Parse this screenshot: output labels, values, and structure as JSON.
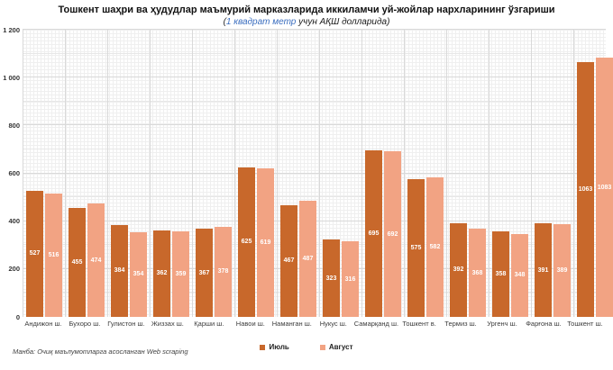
{
  "header": {
    "title": "Тошкент шаҳри ва ҳудудлар маъмурий марказларида иккиламчи уй-жойлар нархларининг ўзгариши",
    "subtitle_open": "(",
    "subtitle_highlight": "1 квадрат метр",
    "subtitle_rest": " учун АҚШ долларида",
    "subtitle_close": ")"
  },
  "chart_data": {
    "type": "bar",
    "title": "Тошкент шаҳри ва ҳудудлар маъмурий марказларида иккиламчи уй-жойлар нархларининг ўзгариши",
    "subtitle": "(1 квадрат метр учун АҚШ долларида)",
    "xlabel": "",
    "ylabel": "",
    "ylim": [
      0,
      1200
    ],
    "grid": true,
    "legend_position": "bottom",
    "categories": [
      "Андижон ш.",
      "Бухоро ш.",
      "Гулистон ш.",
      "Жиззах ш.",
      "Қарши ш.",
      "Навои ш.",
      "Наманган ш.",
      "Нукус ш.",
      "Самарқанд ш.",
      "Тошкент в.",
      "Термиз ш.",
      "Ургенч ш.",
      "Фарғона ш.",
      "Тошкент ш."
    ],
    "series": [
      {
        "name": "Июль",
        "color": "#C8682B",
        "values": [
          527,
          455,
          384,
          362,
          367,
          625,
          467,
          323,
          695,
          575,
          392,
          358,
          391,
          1063
        ]
      },
      {
        "name": "Август",
        "color": "#F2A383",
        "values": [
          516,
          474,
          354,
          359,
          378,
          619,
          487,
          316,
          692,
          582,
          368,
          348,
          389,
          1083
        ]
      }
    ],
    "yticks": [
      {
        "value": 0,
        "label": "0"
      },
      {
        "value": 200,
        "label": "200"
      },
      {
        "value": 400,
        "label": "400"
      },
      {
        "value": 600,
        "label": "600"
      },
      {
        "value": 800,
        "label": "800"
      },
      {
        "value": 1000,
        "label": "1 000"
      },
      {
        "value": 1200,
        "label": "1 200"
      }
    ]
  },
  "footer": {
    "source": "Манба: Очиқ маълумотларга асосланган Web scraping"
  }
}
